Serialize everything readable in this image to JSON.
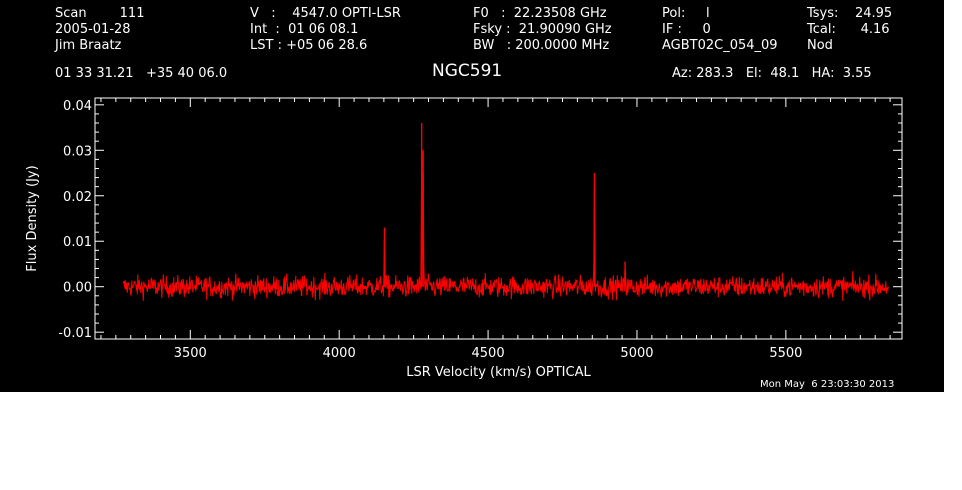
{
  "header": {
    "col1": [
      "Scan        111",
      "2005-01-28",
      "Jim Braatz"
    ],
    "col2": [
      "V   :    4547.0 OPTI-LSR",
      "Int  :  01 06 08.1",
      "LST : +05 06 28.6"
    ],
    "col3": [
      "F0   :  22.23508 GHz",
      "Fsky :  21.90090 GHz",
      "BW   : 200.0000 MHz"
    ],
    "col4": [
      "Pol:     l",
      "IF :     0",
      "AGBT02C_054_09"
    ],
    "col5": [
      "Tsys:    24.95",
      "Tcal:      4.16",
      "Nod"
    ],
    "coords": "01 33 31.21   +35 40 06.0",
    "source": "NGC591",
    "azel": "Az: 283.3   El:  48.1   HA:  3.55",
    "date": "Mon May  6 23:03:30 2013"
  },
  "colors": {
    "background": "#000000",
    "foreground": "#ffffff",
    "trace": "#ff0000"
  },
  "chart_data": {
    "type": "line",
    "title": "NGC591",
    "xlabel": "LSR Velocity (km/s) OPTICAL",
    "ylabel": "Flux Density (Jy)",
    "xlim": [
      3180,
      5890
    ],
    "ylim": [
      -0.0115,
      0.0415
    ],
    "xticks": [
      3500,
      4000,
      4500,
      5000,
      5500
    ],
    "xtick_labels": [
      "3500",
      "4000",
      "4500",
      "5000",
      "5500"
    ],
    "yticks": [
      -0.01,
      0.0,
      0.01,
      0.02,
      0.03,
      0.04
    ],
    "ytick_labels": [
      "-0.01",
      "0.00",
      "0.01",
      "0.02",
      "0.03",
      "0.04"
    ],
    "series": [
      {
        "color": "#ff0000",
        "x_range": [
          3275,
          5845
        ],
        "baseline": 0.0,
        "noise_rms": 0.0012,
        "features": [
          {
            "x": 4152,
            "y": 0.013
          },
          {
            "x": 4277,
            "y": 0.036
          },
          {
            "x": 4282,
            "y": 0.03
          },
          {
            "x": 4857,
            "y": 0.025
          },
          {
            "x": 4960,
            "y": 0.0055
          }
        ]
      }
    ]
  }
}
